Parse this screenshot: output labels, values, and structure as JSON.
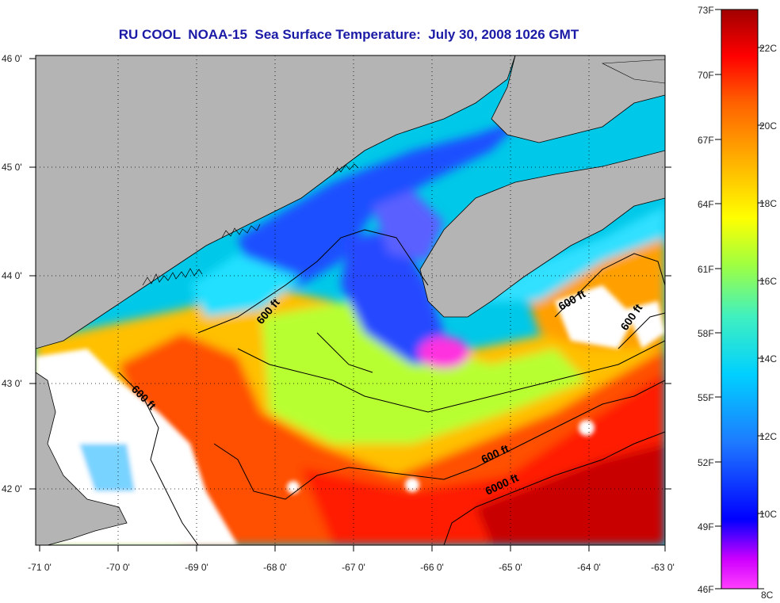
{
  "title": "RU COOL  NOAA-15  Sea Surface Temperature:  July 30, 2008 1026 GMT",
  "map": {
    "lon_range": [
      -71,
      -63
    ],
    "lat_range": [
      41.5,
      46.0
    ],
    "x_ticks": [
      "-71 0'",
      "-70 0'",
      "-69 0'",
      "-68 0'",
      "-67 0'",
      "-66 0'",
      "-65 0'",
      "-64 0'",
      "-63 0'"
    ],
    "y_ticks": [
      "46 0'",
      "45 0'",
      "44 0'",
      "43 0'",
      "42 0'"
    ],
    "contour_labels": [
      "600 ft",
      "600 ft",
      "600 ft",
      "600 ft",
      "600 ft",
      "6000 ft"
    ],
    "colors": {
      "land": "#b4b4b4",
      "cloud": "#ffffff",
      "coastline": "#000000"
    }
  },
  "colorbar": {
    "fahrenheit": [
      "73F",
      "70F",
      "67F",
      "64F",
      "61F",
      "58F",
      "55F",
      "52F",
      "49F",
      "46F"
    ],
    "celsius": [
      "22C",
      "20C",
      "18C",
      "16C",
      "14C",
      "12C",
      "10C",
      "8C"
    ],
    "stops": [
      "#ff40ff",
      "#d000ff",
      "#0000ff",
      "#1e78ff",
      "#00d0ff",
      "#40f0c0",
      "#a0ff40",
      "#ffff00",
      "#ffb000",
      "#ff6000",
      "#ff0000",
      "#a00000"
    ]
  }
}
